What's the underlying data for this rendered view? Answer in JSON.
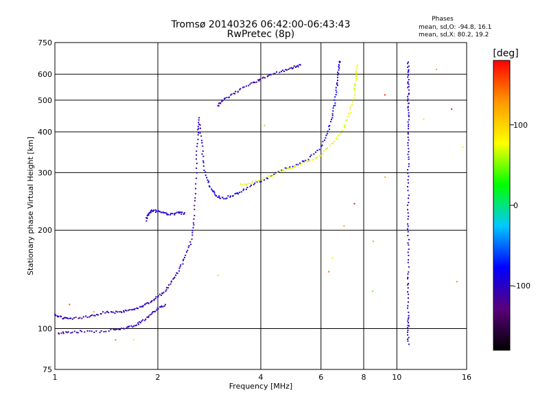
{
  "chart_data": {
    "type": "scatter",
    "title": "Tromsø 20140326 06:42:00-06:43:43",
    "subtitle": "RwPretec (8p)",
    "xlabel": "Frequency [MHz]",
    "ylabel": "Stationary phase Virtual Height [km]",
    "x_scale": "log",
    "y_scale": "log",
    "xlim": [
      1,
      16
    ],
    "ylim": [
      75,
      750
    ],
    "x_ticks": [
      "1",
      "2",
      "4",
      "6",
      "8",
      "10",
      "16"
    ],
    "y_ticks": [
      "75",
      "100",
      "200",
      "300",
      "400",
      "500",
      "600",
      "750"
    ],
    "grid": true,
    "phase_stats": {
      "heading": "Phases",
      "line_o": "mean, sd,O: -94.8, 16.1",
      "line_x": "mean, sd,X:  80.2, 19.2"
    },
    "colorbar": {
      "label": "[deg]",
      "ticks": [
        "100",
        "0",
        "-100"
      ],
      "tick_values": [
        100,
        0,
        -100
      ],
      "range": [
        -180,
        180
      ],
      "colors": [
        "#000000",
        "#5a007a",
        "#0000ff",
        "#00c8ff",
        "#00ff00",
        "#ffff00",
        "#ff9900",
        "#ff0000"
      ]
    },
    "series": [
      {
        "trace": "o-mode-low-e",
        "phase_deg": -105,
        "points": [
          [
            1.0,
            110
          ],
          [
            1.05,
            108
          ],
          [
            1.1,
            107
          ],
          [
            1.2,
            108
          ],
          [
            1.3,
            110
          ],
          [
            1.4,
            112
          ],
          [
            1.5,
            112
          ],
          [
            1.6,
            113
          ],
          [
            1.7,
            115
          ],
          [
            1.8,
            117
          ],
          [
            1.9,
            120
          ],
          [
            2.0,
            125
          ],
          [
            2.1,
            130
          ],
          [
            2.2,
            140
          ],
          [
            2.3,
            150
          ],
          [
            2.4,
            165
          ],
          [
            2.5,
            185
          ],
          [
            2.55,
            210
          ],
          [
            2.58,
            260
          ],
          [
            2.6,
            330
          ],
          [
            2.62,
            400
          ],
          [
            2.64,
            440
          ]
        ]
      },
      {
        "trace": "o-mode-lower-band",
        "phase_deg": -105,
        "points": [
          [
            1.02,
            97
          ],
          [
            1.1,
            97
          ],
          [
            1.2,
            98
          ],
          [
            1.35,
            98
          ],
          [
            1.5,
            99
          ],
          [
            1.6,
            100
          ],
          [
            1.7,
            102
          ],
          [
            1.8,
            105
          ],
          [
            1.9,
            110
          ],
          [
            2.0,
            115
          ],
          [
            2.1,
            118
          ]
        ]
      },
      {
        "trace": "o-mode-es-step",
        "phase_deg": -100,
        "points": [
          [
            1.85,
            215
          ],
          [
            1.88,
            225
          ],
          [
            1.92,
            230
          ],
          [
            2.0,
            228
          ],
          [
            2.1,
            225
          ],
          [
            2.2,
            224
          ],
          [
            2.3,
            226
          ],
          [
            2.4,
            225
          ]
        ]
      },
      {
        "trace": "o-mode-f-layer",
        "phase_deg": -90,
        "points": [
          [
            2.65,
            420
          ],
          [
            2.7,
            350
          ],
          [
            2.75,
            300
          ],
          [
            2.85,
            270
          ],
          [
            2.95,
            255
          ],
          [
            3.1,
            250
          ],
          [
            3.3,
            255
          ],
          [
            3.5,
            262
          ],
          [
            3.8,
            275
          ],
          [
            4.2,
            290
          ],
          [
            4.6,
            305
          ],
          [
            5.0,
            315
          ],
          [
            5.5,
            330
          ],
          [
            6.0,
            360
          ],
          [
            6.3,
            400
          ],
          [
            6.5,
            450
          ],
          [
            6.6,
            500
          ],
          [
            6.7,
            560
          ],
          [
            6.75,
            620
          ],
          [
            6.8,
            660
          ]
        ]
      },
      {
        "trace": "o-mode-upper",
        "phase_deg": -105,
        "points": [
          [
            3.0,
            480
          ],
          [
            3.1,
            500
          ],
          [
            3.3,
            520
          ],
          [
            3.5,
            540
          ],
          [
            3.8,
            565
          ],
          [
            4.0,
            580
          ],
          [
            4.3,
            600
          ],
          [
            4.7,
            615
          ],
          [
            5.0,
            630
          ],
          [
            5.2,
            640
          ]
        ]
      },
      {
        "trace": "x-mode-f-layer",
        "phase_deg": 75,
        "points": [
          [
            3.5,
            275
          ],
          [
            3.8,
            280
          ],
          [
            4.2,
            292
          ],
          [
            4.6,
            302
          ],
          [
            5.0,
            312
          ],
          [
            5.5,
            325
          ],
          [
            6.0,
            340
          ],
          [
            6.5,
            370
          ],
          [
            7.0,
            410
          ],
          [
            7.3,
            460
          ],
          [
            7.5,
            520
          ],
          [
            7.6,
            580
          ],
          [
            7.65,
            640
          ]
        ]
      },
      {
        "trace": "vertical-interference-10.8",
        "phase_deg": -100,
        "points": [
          [
            10.8,
            90
          ],
          [
            10.8,
            100
          ],
          [
            10.8,
            110
          ],
          [
            10.8,
            130
          ],
          [
            10.8,
            150
          ],
          [
            10.8,
            180
          ],
          [
            10.8,
            210
          ],
          [
            10.8,
            250
          ],
          [
            10.8,
            300
          ],
          [
            10.8,
            350
          ],
          [
            10.8,
            400
          ],
          [
            10.8,
            450
          ],
          [
            10.8,
            500
          ],
          [
            10.8,
            550
          ],
          [
            10.8,
            600
          ],
          [
            10.8,
            650
          ]
        ]
      },
      {
        "trace": "scattered",
        "phase_deg": 120,
        "points": [
          [
            1.1,
            118
          ],
          [
            1.3,
            113
          ],
          [
            1.5,
            92
          ],
          [
            1.7,
            93
          ],
          [
            3.0,
            145
          ],
          [
            4.1,
            420
          ],
          [
            6.3,
            150
          ],
          [
            6.5,
            165
          ],
          [
            7.0,
            205
          ],
          [
            7.5,
            240
          ],
          [
            8.5,
            185
          ],
          [
            8.5,
            130
          ],
          [
            9.2,
            290
          ],
          [
            9.2,
            520
          ],
          [
            12.0,
            440
          ],
          [
            13.0,
            620
          ],
          [
            14.5,
            470
          ],
          [
            15.0,
            140
          ],
          [
            15.5,
            360
          ]
        ]
      }
    ]
  }
}
